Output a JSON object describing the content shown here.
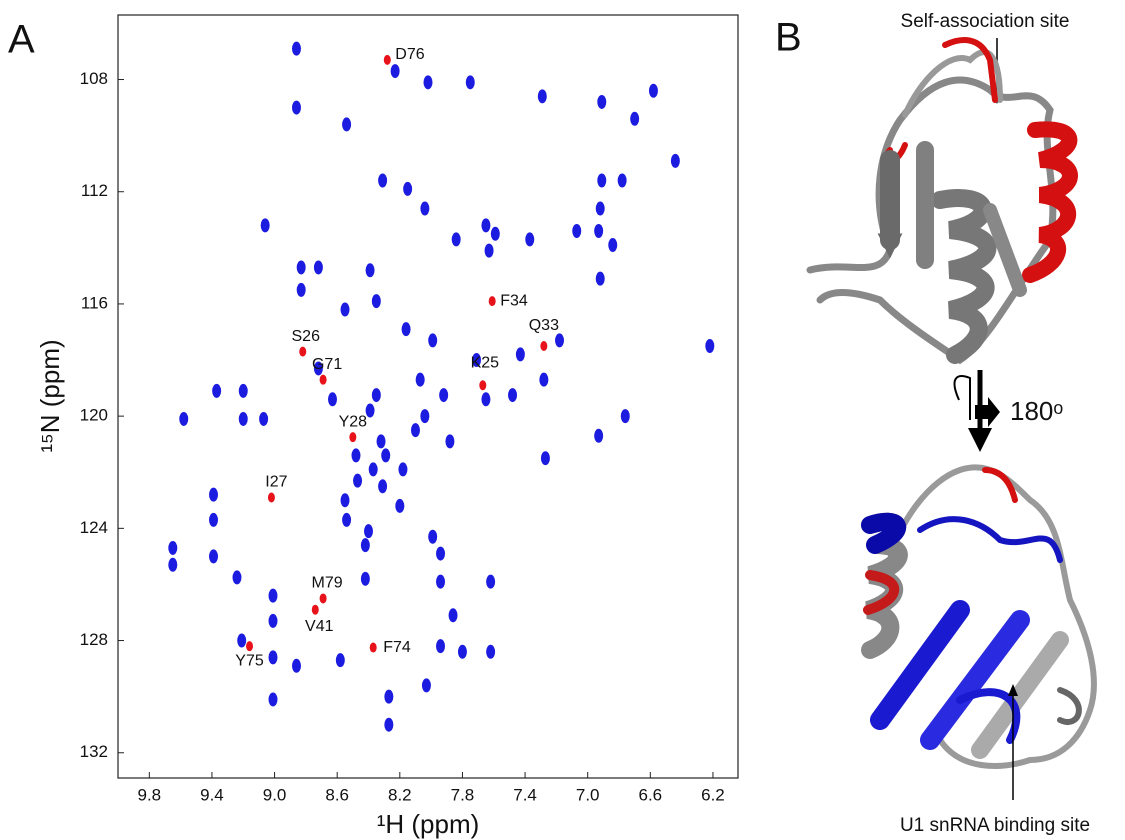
{
  "panel_a_label": "A",
  "panel_b": {
    "label": "B",
    "top_annotation": "Self-association site",
    "rotation": "180ᵒ",
    "bottom_annotation": "U1 snRNA binding site"
  },
  "chart_data": {
    "type": "scatter",
    "x_label": "¹H (ppm)",
    "y_label": "¹⁵N (ppm)",
    "xlim": [
      10.0,
      6.04
    ],
    "ylim": [
      105.7,
      132.9
    ],
    "xticks": [
      9.8,
      9.4,
      {
        "value": 9,
        "label": "9.0"
      },
      8.6,
      8.2,
      7.8,
      7.4,
      {
        "value": 7,
        "label": "7.0"
      },
      6.6,
      6.2
    ],
    "yticks": [
      108,
      112,
      116,
      120,
      124,
      128,
      132
    ],
    "series": [
      {
        "color": "#1c1ce0",
        "x": [
          8.86,
          8.86,
          8.23,
          8.02,
          7.75,
          7.29,
          6.91,
          6.58,
          6.7,
          8.54,
          8.31,
          8.15,
          8.04,
          9.06,
          8.83,
          8.72,
          8.83,
          8.72,
          8.63,
          9.2,
          9.37,
          9.58,
          9.2,
          9.07,
          9.39,
          9.39,
          9.65,
          9.65,
          9.39,
          9.24,
          9.01,
          9.01,
          9.01,
          9.01,
          9.21,
          8.86,
          8.58,
          8.42,
          8.42,
          8.2,
          7.99,
          7.94,
          7.94,
          7.94,
          8.03,
          8.27,
          8.27,
          7.8,
          7.62,
          7.86,
          7.62,
          8.32,
          8.37,
          8.47,
          8.55,
          8.54,
          8.4,
          8.31,
          8.18,
          8.1,
          7.92,
          7.88,
          7.65,
          7.48,
          7.28,
          7.27,
          7.18,
          6.92,
          6.84,
          6.92,
          6.91,
          6.78,
          6.44,
          7.65,
          7.59,
          7.63,
          8.07,
          7.99,
          7.71,
          7.43,
          6.93,
          6.76,
          8.39,
          8.16,
          8.35,
          8.55,
          8.39,
          7.84,
          7.37,
          7.07,
          6.93,
          6.22,
          8.35,
          8.48,
          8.29,
          8.04
        ],
        "y": [
          106.9,
          109.0,
          107.7,
          108.1,
          108.1,
          108.6,
          108.8,
          108.4,
          109.4,
          109.6,
          111.6,
          111.9,
          112.6,
          113.2,
          114.7,
          114.7,
          115.5,
          118.3,
          119.4,
          119.1,
          119.1,
          120.1,
          120.1,
          120.1,
          122.8,
          123.7,
          124.7,
          125.3,
          125.0,
          125.75,
          126.4,
          127.3,
          128.6,
          130.1,
          128.0,
          128.9,
          128.7,
          125.8,
          124.6,
          123.2,
          124.3,
          124.9,
          125.9,
          128.2,
          129.6,
          131.0,
          130.0,
          128.4,
          128.4,
          127.1,
          125.9,
          120.9,
          121.9,
          122.3,
          123.0,
          123.7,
          124.1,
          122.5,
          121.9,
          120.5,
          119.25,
          120.9,
          119.4,
          119.25,
          118.7,
          121.5,
          117.3,
          115.1,
          113.9,
          112.6,
          111.6,
          111.6,
          110.9,
          113.2,
          113.5,
          114.1,
          118.7,
          117.3,
          118.0,
          117.8,
          120.7,
          120.0,
          119.8,
          116.9,
          115.9,
          116.2,
          114.8,
          113.7,
          113.7,
          113.4,
          113.4,
          117.5,
          119.25,
          121.4,
          121.4,
          120.0
        ]
      },
      {
        "color": "#e8121a",
        "labels": [
          "D76",
          "F34",
          "Q33",
          "S26",
          "G71",
          "K25",
          "Y28",
          "I27",
          "M79",
          "V41",
          "F74",
          "Y75"
        ],
        "x": [
          8.28,
          7.61,
          7.28,
          8.82,
          8.69,
          7.67,
          8.5,
          9.02,
          8.69,
          8.74,
          8.37,
          9.16
        ],
        "y": [
          107.3,
          115.9,
          117.5,
          117.7,
          118.7,
          118.9,
          120.75,
          122.9,
          126.5,
          126.9,
          128.25,
          128.2
        ]
      }
    ]
  }
}
